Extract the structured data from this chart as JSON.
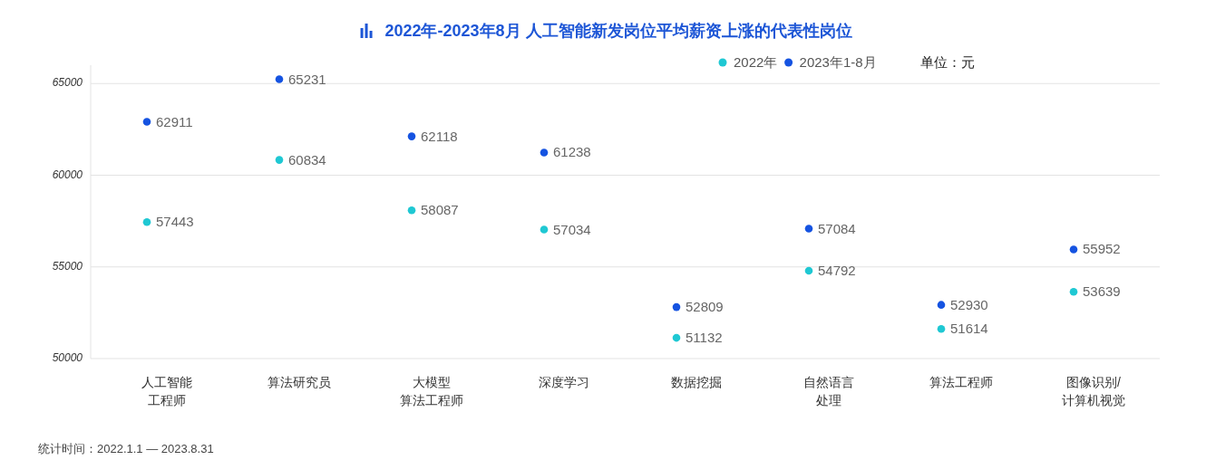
{
  "chart_data": {
    "type": "scatter",
    "title": "2022年-2023年8月 人工智能新发岗位平均薪资上涨的代表性岗位",
    "categories": [
      "人工智能工程师",
      "算法研究员",
      "大模型算法工程师",
      "深度学习",
      "数据挖掘",
      "自然语言处理",
      "算法工程师",
      "图像识别/计算机视觉"
    ],
    "series": [
      {
        "name": "2022年",
        "color": "#1fc8d3",
        "values": [
          57443,
          60834,
          58087,
          57034,
          51132,
          54792,
          51614,
          53639
        ]
      },
      {
        "name": "2023年1-8月",
        "color": "#1553e1",
        "values": [
          62911,
          65231,
          62118,
          61238,
          52809,
          57084,
          52930,
          55952
        ]
      }
    ],
    "ylim": [
      50000,
      66000
    ],
    "yticks": [
      50000,
      55000,
      60000,
      65000
    ],
    "grid": "y",
    "legend": "top",
    "marker": "circle",
    "data_labels": true,
    "annotations": [
      "单位：元",
      "统计时间：2022.1.1 — 2023.8.31"
    ]
  }
}
